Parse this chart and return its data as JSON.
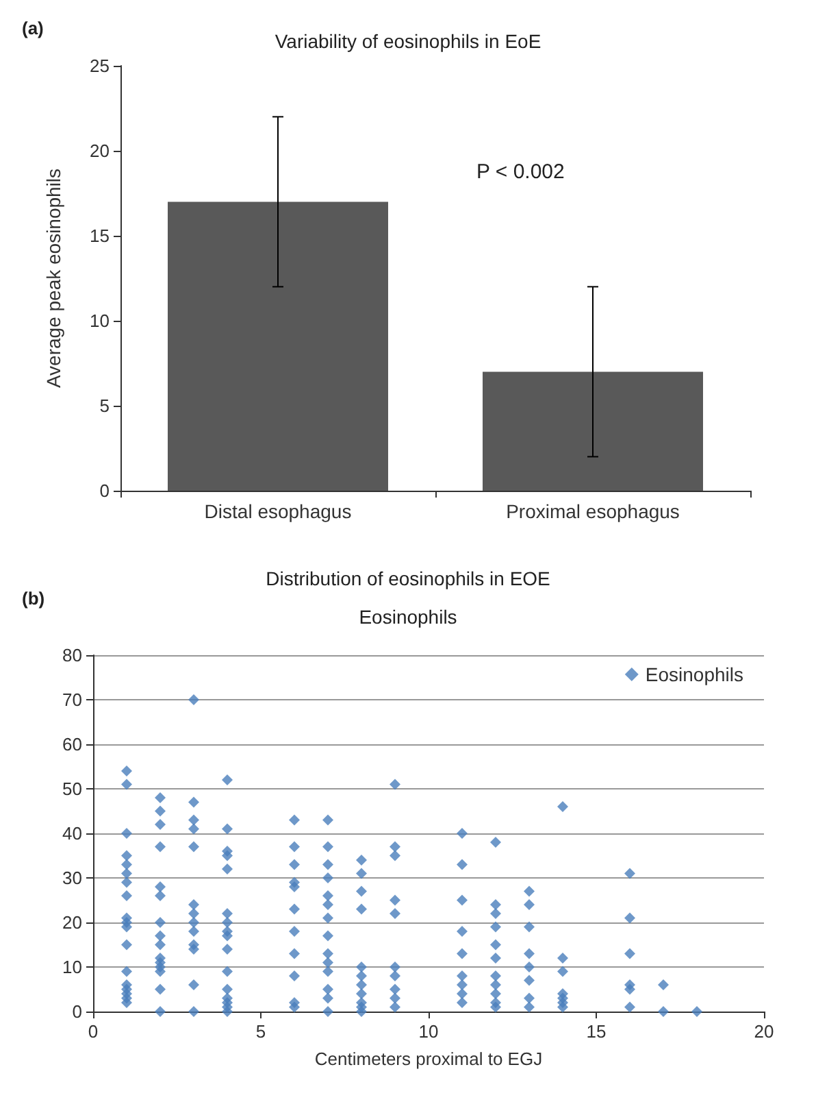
{
  "chart_data": [
    {
      "type": "bar",
      "title": "Variability of eosinophils in EoE",
      "ylabel": "Average peak eosinophils",
      "categories": [
        "Distal esophagus",
        "Proximal esophagus"
      ],
      "values": [
        17,
        7
      ],
      "errors": [
        5,
        5
      ],
      "color": "#595959",
      "ylim": [
        0,
        25
      ],
      "yticks": [
        0,
        5,
        10,
        15,
        20,
        25
      ],
      "grid": false,
      "annotations": [
        "(a)",
        "P < 0.002"
      ]
    },
    {
      "type": "scatter",
      "title": "Distribution of eosinophils in EOE",
      "subtitle": "Eosinophils",
      "xlabel": "Centimeters proximal to EGJ",
      "xlim": [
        0,
        20
      ],
      "xticks": [
        0,
        5,
        10,
        15,
        20
      ],
      "ylim": [
        0,
        80
      ],
      "yticks": [
        0,
        10,
        20,
        30,
        40,
        50,
        60,
        70,
        80
      ],
      "grid": "y",
      "legend": "top right",
      "marker": "diamond",
      "annotations": [
        "(b)"
      ],
      "series": [
        {
          "name": "Eosinophils",
          "color": "#4a7ebb",
          "x": [
            1,
            1,
            1,
            1,
            1,
            1,
            1,
            1,
            1,
            1,
            1,
            1,
            1,
            1,
            1,
            1,
            1,
            1,
            2,
            2,
            2,
            2,
            2,
            2,
            2,
            2,
            2,
            2,
            2,
            2,
            2,
            2,
            2,
            3,
            3,
            3,
            3,
            3,
            3,
            3,
            3,
            3,
            3,
            3,
            3,
            3,
            4,
            4,
            4,
            4,
            4,
            4,
            4,
            4,
            4,
            4,
            4,
            4,
            4,
            4,
            4,
            4,
            6,
            6,
            6,
            6,
            6,
            6,
            6,
            6,
            6,
            6,
            6,
            7,
            7,
            7,
            7,
            7,
            7,
            7,
            7,
            7,
            7,
            7,
            7,
            7,
            7,
            8,
            8,
            8,
            8,
            8,
            8,
            8,
            8,
            8,
            8,
            8,
            9,
            9,
            9,
            9,
            9,
            9,
            9,
            9,
            9,
            9,
            11,
            11,
            11,
            11,
            11,
            11,
            11,
            11,
            11,
            12,
            12,
            12,
            12,
            12,
            12,
            12,
            12,
            12,
            12,
            12,
            13,
            13,
            13,
            13,
            13,
            13,
            13,
            13,
            14,
            14,
            14,
            14,
            14,
            14,
            14,
            16,
            16,
            16,
            16,
            16,
            16,
            17,
            17,
            18
          ],
          "values": [
            54,
            51,
            40,
            35,
            33,
            31,
            29,
            26,
            21,
            20,
            19,
            15,
            9,
            6,
            5,
            4,
            3,
            2,
            48,
            45,
            42,
            37,
            28,
            26,
            20,
            17,
            15,
            12,
            11,
            10,
            9,
            5,
            0,
            70,
            47,
            43,
            41,
            37,
            24,
            22,
            20,
            18,
            15,
            14,
            6,
            0,
            52,
            41,
            36,
            35,
            32,
            22,
            20,
            18,
            17,
            14,
            9,
            5,
            3,
            2,
            1,
            0,
            43,
            37,
            33,
            29,
            28,
            23,
            18,
            13,
            8,
            2,
            1,
            43,
            37,
            33,
            30,
            26,
            24,
            21,
            17,
            13,
            11,
            9,
            5,
            3,
            0,
            34,
            31,
            27,
            23,
            10,
            8,
            6,
            4,
            2,
            1,
            0,
            51,
            37,
            35,
            25,
            22,
            10,
            8,
            5,
            3,
            1,
            40,
            33,
            25,
            18,
            13,
            8,
            6,
            4,
            2,
            38,
            24,
            22,
            19,
            15,
            12,
            8,
            6,
            4,
            2,
            1,
            27,
            24,
            19,
            13,
            10,
            7,
            3,
            1,
            46,
            12,
            9,
            4,
            3,
            2,
            1,
            31,
            21,
            13,
            6,
            5,
            1,
            6,
            0,
            0
          ]
        }
      ]
    }
  ]
}
